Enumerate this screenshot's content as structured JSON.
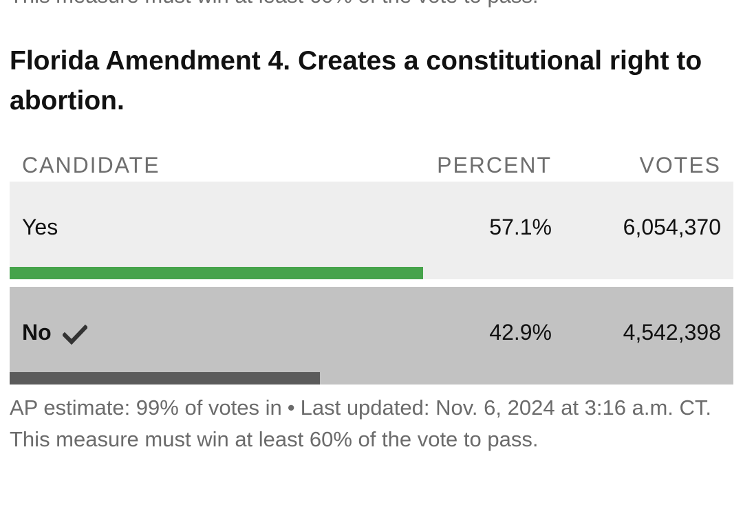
{
  "previous_note": "This measure must win at least 60% of the vote to pass.",
  "race": {
    "title": "Florida Amendment 4. Creates a constitutional right to abortion."
  },
  "table": {
    "headers": {
      "candidate": "CANDIDATE",
      "percent": "PERCENT",
      "votes": "VOTES"
    },
    "rows": [
      {
        "name": "Yes",
        "percent_text": "57.1%",
        "votes_text": "6,054,370",
        "share": 0.571,
        "winner": false,
        "bar_color": "#46a34b"
      },
      {
        "name": "No",
        "percent_text": "42.9%",
        "votes_text": "4,542,398",
        "share": 0.429,
        "winner": true,
        "winner_icon": "checkmark-icon",
        "bar_color": "#5b5b5b"
      }
    ]
  },
  "footer": {
    "estimate": "AP estimate: 99% of votes in",
    "separator": "•",
    "updated": "Last updated: Nov. 6, 2024 at 3:16 a.m. CT.",
    "threshold_note": "This measure must win at least 60% of the vote to pass."
  }
}
